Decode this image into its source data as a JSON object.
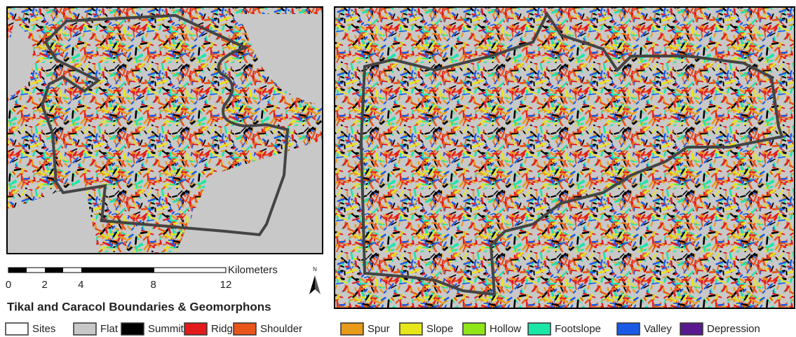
{
  "title": "Tikal and Caracol Boundaries & Geomorphons",
  "scale_bar": {
    "unit": "Kilometers",
    "ticks": [
      0,
      2,
      4,
      8,
      12
    ]
  },
  "north_arrow": "N",
  "legend": [
    {
      "label": "Sites",
      "color": "#ffffff"
    },
    {
      "label": "Flat",
      "color": "#c8c8c8"
    },
    {
      "label": "Summit",
      "color": "#000000"
    },
    {
      "label": "Ridge",
      "color": "#e31a1c"
    },
    {
      "label": "Shoulder",
      "color": "#e8541a"
    },
    {
      "label": "Spur",
      "color": "#e89a1a"
    },
    {
      "label": "Slope",
      "color": "#e6e619"
    },
    {
      "label": "Hollow",
      "color": "#8fe619"
    },
    {
      "label": "Footslope",
      "color": "#1ae6a8"
    },
    {
      "label": "Valley",
      "color": "#1a5ae6"
    },
    {
      "label": "Depression",
      "color": "#5a1a8f"
    }
  ]
}
